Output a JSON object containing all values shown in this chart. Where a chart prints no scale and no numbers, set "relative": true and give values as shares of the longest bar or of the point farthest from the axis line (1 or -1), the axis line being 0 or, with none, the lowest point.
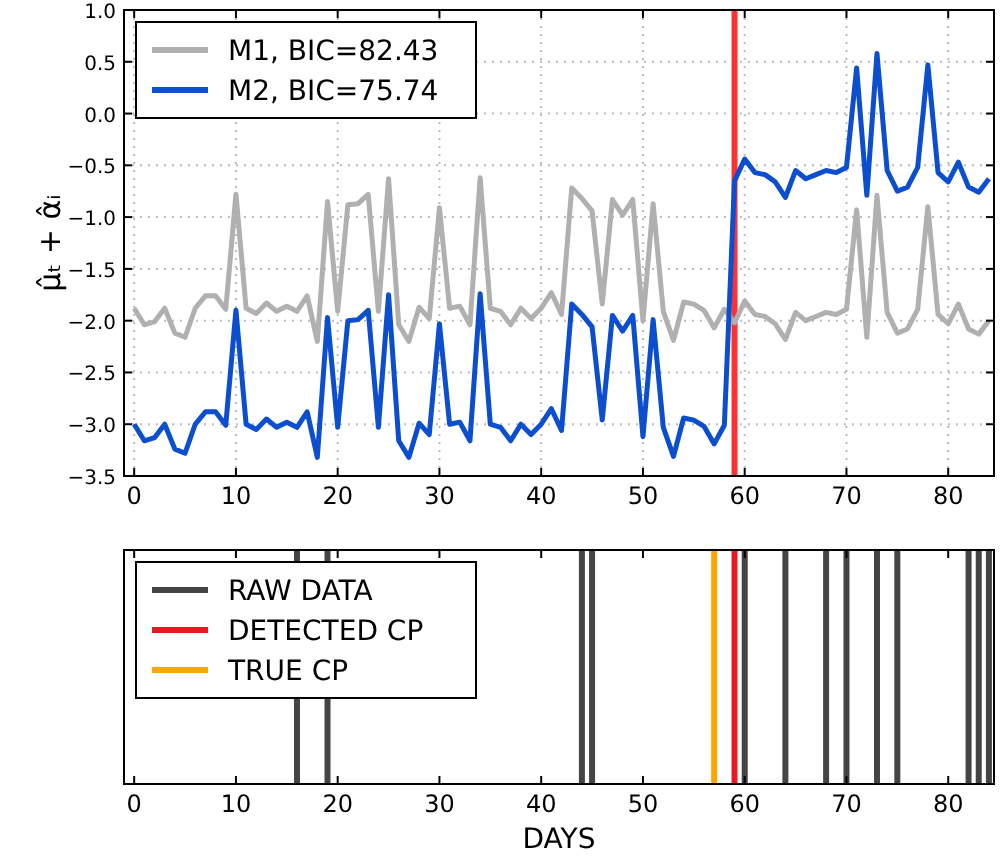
{
  "chart_data": [
    {
      "type": "line",
      "ylabel": "μ̂ₜ + α̂ᵢ",
      "x": [
        0,
        1,
        2,
        3,
        4,
        5,
        6,
        7,
        8,
        9,
        10,
        11,
        12,
        13,
        14,
        15,
        16,
        17,
        18,
        19,
        20,
        21,
        22,
        23,
        24,
        25,
        26,
        27,
        28,
        29,
        30,
        31,
        32,
        33,
        34,
        35,
        36,
        37,
        38,
        39,
        40,
        41,
        42,
        43,
        44,
        45,
        46,
        47,
        48,
        49,
        50,
        51,
        52,
        53,
        54,
        55,
        56,
        57,
        58,
        59,
        60,
        61,
        62,
        63,
        64,
        65,
        66,
        67,
        68,
        69,
        70,
        71,
        72,
        73,
        74,
        75,
        76,
        77,
        78,
        79,
        80,
        81,
        82,
        83,
        84
      ],
      "series": [
        {
          "name": "M1, BIC=82.43",
          "color": "#b0b0b0",
          "values": [
            -1.88,
            -2.04,
            -2.01,
            -1.88,
            -2.12,
            -2.16,
            -1.88,
            -1.76,
            -1.76,
            -1.89,
            -0.78,
            -1.88,
            -1.93,
            -1.83,
            -1.91,
            -1.86,
            -1.91,
            -1.76,
            -2.2,
            -0.85,
            -1.91,
            -0.88,
            -0.87,
            -0.78,
            -1.91,
            -0.63,
            -2.04,
            -2.2,
            -1.87,
            -1.98,
            -0.91,
            -1.88,
            -1.86,
            -2.04,
            -0.62,
            -1.88,
            -1.91,
            -2.04,
            -1.88,
            -1.98,
            -1.88,
            -1.73,
            -1.94,
            -0.72,
            -0.82,
            -0.94,
            -1.84,
            -0.83,
            -0.98,
            -0.83,
            -2.0,
            -0.87,
            -1.91,
            -2.19,
            -1.82,
            -1.84,
            -1.9,
            -2.07,
            -1.89,
            -2.02,
            -1.81,
            -1.94,
            -1.96,
            -2.03,
            -2.18,
            -1.92,
            -2.0,
            -1.96,
            -1.92,
            -1.94,
            -1.89,
            -0.93,
            -2.16,
            -0.79,
            -1.92,
            -2.12,
            -2.08,
            -1.89,
            -0.9,
            -1.94,
            -2.03,
            -1.84,
            -2.08,
            -2.13,
            -2.0
          ]
        },
        {
          "name": "M2, BIC=75.74",
          "color": "#0b4fd0",
          "values": [
            -3.0,
            -3.16,
            -3.13,
            -3.0,
            -3.24,
            -3.28,
            -3.0,
            -2.88,
            -2.88,
            -3.01,
            -1.9,
            -3.0,
            -3.05,
            -2.95,
            -3.03,
            -2.98,
            -3.03,
            -2.88,
            -3.32,
            -1.97,
            -3.03,
            -2.0,
            -1.99,
            -1.9,
            -3.03,
            -1.75,
            -3.16,
            -3.32,
            -2.99,
            -3.1,
            -2.03,
            -3.0,
            -2.98,
            -3.16,
            -1.74,
            -3.0,
            -3.03,
            -3.16,
            -3.0,
            -3.1,
            -3.0,
            -2.85,
            -3.06,
            -1.84,
            -1.94,
            -2.06,
            -2.96,
            -1.95,
            -2.1,
            -1.95,
            -3.12,
            -1.99,
            -3.03,
            -3.31,
            -2.94,
            -2.96,
            -3.02,
            -3.19,
            -3.01,
            -0.65,
            -0.44,
            -0.57,
            -0.59,
            -0.66,
            -0.81,
            -0.55,
            -0.63,
            -0.59,
            -0.55,
            -0.57,
            -0.52,
            0.44,
            -0.79,
            0.58,
            -0.55,
            -0.75,
            -0.71,
            -0.52,
            0.47,
            -0.57,
            -0.66,
            -0.47,
            -0.71,
            -0.76,
            -0.63
          ]
        }
      ],
      "xlim": [
        -1,
        84.5
      ],
      "xticks": [
        0,
        10,
        20,
        30,
        40,
        50,
        60,
        70,
        80
      ],
      "ylim": [
        -3.5,
        1.0
      ],
      "yticks": [
        {
          "value": -3.5,
          "label": "−3.5"
        },
        {
          "value": -3,
          "label": "−3.0"
        },
        {
          "value": -2.5,
          "label": "−2.5"
        },
        {
          "value": -2,
          "label": "−2.0"
        },
        {
          "value": -1.5,
          "label": "−1.5"
        },
        {
          "value": -1,
          "label": "−1.0"
        },
        {
          "value": -0.5,
          "label": "−0.5"
        },
        {
          "value": 0,
          "label": "0.0"
        },
        {
          "value": 0.5,
          "label": "0.5"
        },
        {
          "value": 1,
          "label": "1.0"
        }
      ],
      "ref_lines": [
        {
          "axis": "x",
          "value": 59,
          "color": "#ff3030"
        }
      ],
      "grid": true,
      "legend": "top left",
      "line_style": "solid",
      "marker": "none"
    },
    {
      "type": "bar",
      "relative": true,
      "xlabel": "DAYS",
      "xlim": [
        -1,
        84.5
      ],
      "xticks": [
        0,
        10,
        20,
        30,
        40,
        50,
        60,
        70,
        80
      ],
      "legend": "top left",
      "series": [
        {
          "name": "RAW DATA",
          "color": "#444444",
          "x": [
            16,
            19,
            44,
            45,
            60,
            64,
            68,
            70,
            73,
            75,
            82,
            83,
            84
          ],
          "values": [
            1,
            1,
            1,
            1,
            1,
            1,
            1,
            1,
            1,
            1,
            1,
            1,
            1
          ]
        },
        {
          "name": "DETECTED CP",
          "color": "#e8191f",
          "x": [
            59
          ],
          "values": [
            1
          ]
        },
        {
          "name": "TRUE CP",
          "color": "#ffa500",
          "x": [
            57
          ],
          "values": [
            1
          ]
        }
      ]
    }
  ]
}
